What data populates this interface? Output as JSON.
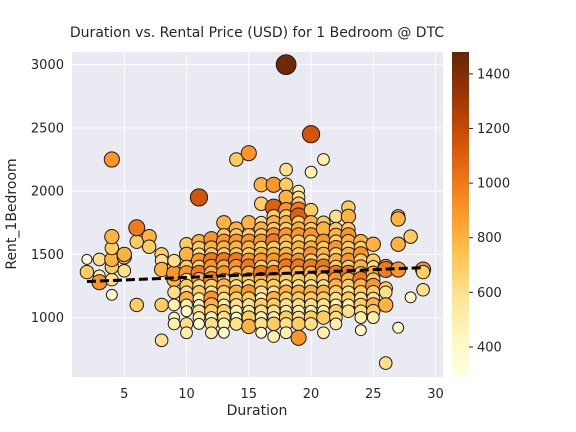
{
  "chart_data": {
    "type": "scatter",
    "title": "Duration vs. Rental Price (USD) for 1 Bedroom @ DTC",
    "xlabel": "Duration",
    "ylabel": "Rent_1Bedroom",
    "xlim": [
      0.8,
      30.6
    ],
    "ylim": [
      530,
      3100
    ],
    "xticks": [
      5,
      10,
      15,
      20,
      25,
      30
    ],
    "yticks": [
      1000,
      1500,
      2000,
      2500,
      3000
    ],
    "grid": true,
    "background": "#eaeaf2",
    "colorbar": {
      "min": 290,
      "max": 1480,
      "ticks": [
        400,
        600,
        800,
        1000,
        1200,
        1400
      ],
      "colormap": "YlOrBr"
    },
    "trendline": {
      "x": [
        2,
        29
      ],
      "y": [
        1285,
        1395
      ],
      "style": "dashed",
      "color": "#000000"
    },
    "points": [
      [
        2,
        1460
      ],
      [
        2,
        1360
      ],
      [
        3,
        1460
      ],
      [
        3,
        1330
      ],
      [
        3,
        1280
      ],
      [
        4,
        1300
      ],
      [
        4,
        1180
      ],
      [
        4,
        1400
      ],
      [
        4,
        1460
      ],
      [
        4,
        1550
      ],
      [
        4,
        1640
      ],
      [
        4,
        2250
      ],
      [
        5,
        1370
      ],
      [
        5,
        1480
      ],
      [
        5,
        1500
      ],
      [
        6,
        1600
      ],
      [
        6,
        1710
      ],
      [
        6,
        1100
      ],
      [
        7,
        1640
      ],
      [
        7,
        1560
      ],
      [
        8,
        1500
      ],
      [
        8,
        1450
      ],
      [
        8,
        1380
      ],
      [
        8,
        1100
      ],
      [
        8,
        820
      ],
      [
        9,
        1400
      ],
      [
        9,
        1300
      ],
      [
        9,
        1200
      ],
      [
        9,
        1100
      ],
      [
        9,
        1000
      ],
      [
        9,
        950
      ],
      [
        9,
        1350
      ],
      [
        9,
        1450
      ],
      [
        10,
        1580
      ],
      [
        10,
        1500
      ],
      [
        10,
        1400
      ],
      [
        10,
        1350
      ],
      [
        10,
        1300
      ],
      [
        10,
        1250
      ],
      [
        10,
        1200
      ],
      [
        10,
        1150
      ],
      [
        10,
        1100
      ],
      [
        10,
        1050
      ],
      [
        10,
        950
      ],
      [
        10,
        880
      ],
      [
        11,
        1950
      ],
      [
        11,
        1600
      ],
      [
        11,
        1550
      ],
      [
        11,
        1500
      ],
      [
        11,
        1450
      ],
      [
        11,
        1400
      ],
      [
        11,
        1350
      ],
      [
        11,
        1300
      ],
      [
        11,
        1250
      ],
      [
        11,
        1200
      ],
      [
        11,
        1150
      ],
      [
        11,
        1100
      ],
      [
        11,
        1050
      ],
      [
        11,
        1000
      ],
      [
        11,
        950
      ],
      [
        12,
        1620
      ],
      [
        12,
        1550
      ],
      [
        12,
        1500
      ],
      [
        12,
        1450
      ],
      [
        12,
        1400
      ],
      [
        12,
        1350
      ],
      [
        12,
        1300
      ],
      [
        12,
        1250
      ],
      [
        12,
        1200
      ],
      [
        12,
        1150
      ],
      [
        12,
        1100
      ],
      [
        12,
        1050
      ],
      [
        12,
        1000
      ],
      [
        12,
        950
      ],
      [
        12,
        880
      ],
      [
        13,
        1750
      ],
      [
        13,
        1650
      ],
      [
        13,
        1600
      ],
      [
        13,
        1550
      ],
      [
        13,
        1500
      ],
      [
        13,
        1450
      ],
      [
        13,
        1400
      ],
      [
        13,
        1350
      ],
      [
        13,
        1300
      ],
      [
        13,
        1250
      ],
      [
        13,
        1200
      ],
      [
        13,
        1150
      ],
      [
        13,
        1100
      ],
      [
        13,
        1050
      ],
      [
        13,
        1000
      ],
      [
        13,
        950
      ],
      [
        13,
        880
      ],
      [
        14,
        2250
      ],
      [
        14,
        1700
      ],
      [
        14,
        1650
      ],
      [
        14,
        1600
      ],
      [
        14,
        1550
      ],
      [
        14,
        1500
      ],
      [
        14,
        1450
      ],
      [
        14,
        1400
      ],
      [
        14,
        1350
      ],
      [
        14,
        1300
      ],
      [
        14,
        1250
      ],
      [
        14,
        1200
      ],
      [
        14,
        1150
      ],
      [
        14,
        1100
      ],
      [
        14,
        1050
      ],
      [
        14,
        1000
      ],
      [
        14,
        950
      ],
      [
        15,
        2300
      ],
      [
        15,
        1750
      ],
      [
        15,
        1650
      ],
      [
        15,
        1600
      ],
      [
        15,
        1550
      ],
      [
        15,
        1500
      ],
      [
        15,
        1450
      ],
      [
        15,
        1400
      ],
      [
        15,
        1350
      ],
      [
        15,
        1300
      ],
      [
        15,
        1250
      ],
      [
        15,
        1200
      ],
      [
        15,
        1150
      ],
      [
        15,
        1100
      ],
      [
        15,
        1050
      ],
      [
        15,
        1000
      ],
      [
        15,
        930
      ],
      [
        16,
        2050
      ],
      [
        16,
        1900
      ],
      [
        16,
        1750
      ],
      [
        16,
        1700
      ],
      [
        16,
        1650
      ],
      [
        16,
        1600
      ],
      [
        16,
        1550
      ],
      [
        16,
        1500
      ],
      [
        16,
        1450
      ],
      [
        16,
        1400
      ],
      [
        16,
        1350
      ],
      [
        16,
        1300
      ],
      [
        16,
        1250
      ],
      [
        16,
        1200
      ],
      [
        16,
        1150
      ],
      [
        16,
        1100
      ],
      [
        16,
        1050
      ],
      [
        16,
        1000
      ],
      [
        16,
        950
      ],
      [
        16,
        880
      ],
      [
        17,
        2050
      ],
      [
        17,
        1870
      ],
      [
        17,
        1800
      ],
      [
        17,
        1750
      ],
      [
        17,
        1700
      ],
      [
        17,
        1650
      ],
      [
        17,
        1600
      ],
      [
        17,
        1550
      ],
      [
        17,
        1500
      ],
      [
        17,
        1450
      ],
      [
        17,
        1400
      ],
      [
        17,
        1350
      ],
      [
        17,
        1300
      ],
      [
        17,
        1250
      ],
      [
        17,
        1200
      ],
      [
        17,
        1150
      ],
      [
        17,
        1100
      ],
      [
        17,
        1050
      ],
      [
        17,
        1000
      ],
      [
        17,
        950
      ],
      [
        17,
        850
      ],
      [
        18,
        3000
      ],
      [
        18,
        2170
      ],
      [
        18,
        2050
      ],
      [
        18,
        1950
      ],
      [
        18,
        1850
      ],
      [
        18,
        1800
      ],
      [
        18,
        1750
      ],
      [
        18,
        1700
      ],
      [
        18,
        1650
      ],
      [
        18,
        1600
      ],
      [
        18,
        1550
      ],
      [
        18,
        1500
      ],
      [
        18,
        1450
      ],
      [
        18,
        1400
      ],
      [
        18,
        1350
      ],
      [
        18,
        1300
      ],
      [
        18,
        1250
      ],
      [
        18,
        1200
      ],
      [
        18,
        1150
      ],
      [
        18,
        1100
      ],
      [
        18,
        1050
      ],
      [
        18,
        1000
      ],
      [
        18,
        950
      ],
      [
        18,
        880
      ],
      [
        19,
        2000
      ],
      [
        19,
        1950
      ],
      [
        19,
        1900
      ],
      [
        19,
        1850
      ],
      [
        19,
        1800
      ],
      [
        19,
        1750
      ],
      [
        19,
        1700
      ],
      [
        19,
        1650
      ],
      [
        19,
        1600
      ],
      [
        19,
        1550
      ],
      [
        19,
        1500
      ],
      [
        19,
        1450
      ],
      [
        19,
        1400
      ],
      [
        19,
        1350
      ],
      [
        19,
        1300
      ],
      [
        19,
        1250
      ],
      [
        19,
        1200
      ],
      [
        19,
        1150
      ],
      [
        19,
        1100
      ],
      [
        19,
        1050
      ],
      [
        19,
        1000
      ],
      [
        19,
        950
      ],
      [
        19,
        840
      ],
      [
        20,
        2450
      ],
      [
        20,
        2150
      ],
      [
        20,
        1850
      ],
      [
        20,
        1750
      ],
      [
        20,
        1700
      ],
      [
        20,
        1650
      ],
      [
        20,
        1600
      ],
      [
        20,
        1550
      ],
      [
        20,
        1500
      ],
      [
        20,
        1450
      ],
      [
        20,
        1400
      ],
      [
        20,
        1350
      ],
      [
        20,
        1300
      ],
      [
        20,
        1250
      ],
      [
        20,
        1200
      ],
      [
        20,
        1150
      ],
      [
        20,
        1100
      ],
      [
        20,
        1050
      ],
      [
        20,
        1000
      ],
      [
        20,
        950
      ],
      [
        21,
        2250
      ],
      [
        21,
        1750
      ],
      [
        21,
        1700
      ],
      [
        21,
        1600
      ],
      [
        21,
        1550
      ],
      [
        21,
        1500
      ],
      [
        21,
        1450
      ],
      [
        21,
        1400
      ],
      [
        21,
        1350
      ],
      [
        21,
        1300
      ],
      [
        21,
        1250
      ],
      [
        21,
        1200
      ],
      [
        21,
        1150
      ],
      [
        21,
        1100
      ],
      [
        21,
        1050
      ],
      [
        21,
        1000
      ],
      [
        21,
        880
      ],
      [
        22,
        1800
      ],
      [
        22,
        1700
      ],
      [
        22,
        1650
      ],
      [
        22,
        1600
      ],
      [
        22,
        1550
      ],
      [
        22,
        1500
      ],
      [
        22,
        1450
      ],
      [
        22,
        1400
      ],
      [
        22,
        1350
      ],
      [
        22,
        1300
      ],
      [
        22,
        1250
      ],
      [
        22,
        1200
      ],
      [
        22,
        1150
      ],
      [
        22,
        1100
      ],
      [
        22,
        1050
      ],
      [
        22,
        1000
      ],
      [
        22,
        950
      ],
      [
        23,
        1870
      ],
      [
        23,
        1800
      ],
      [
        23,
        1700
      ],
      [
        23,
        1650
      ],
      [
        23,
        1600
      ],
      [
        23,
        1550
      ],
      [
        23,
        1500
      ],
      [
        23,
        1450
      ],
      [
        23,
        1400
      ],
      [
        23,
        1350
      ],
      [
        23,
        1300
      ],
      [
        23,
        1250
      ],
      [
        23,
        1200
      ],
      [
        23,
        1150
      ],
      [
        23,
        1100
      ],
      [
        23,
        1050
      ],
      [
        24,
        1600
      ],
      [
        24,
        1550
      ],
      [
        24,
        1500
      ],
      [
        24,
        1450
      ],
      [
        24,
        1400
      ],
      [
        24,
        1350
      ],
      [
        24,
        1300
      ],
      [
        24,
        1250
      ],
      [
        24,
        1200
      ],
      [
        24,
        1150
      ],
      [
        24,
        1100
      ],
      [
        24,
        1050
      ],
      [
        24,
        1000
      ],
      [
        24,
        900
      ],
      [
        25,
        1580
      ],
      [
        25,
        1450
      ],
      [
        25,
        1400
      ],
      [
        25,
        1350
      ],
      [
        25,
        1300
      ],
      [
        25,
        1250
      ],
      [
        25,
        1200
      ],
      [
        25,
        1150
      ],
      [
        25,
        1100
      ],
      [
        25,
        1050
      ],
      [
        25,
        1000
      ],
      [
        26,
        1400
      ],
      [
        26,
        1380
      ],
      [
        26,
        1230
      ],
      [
        26,
        1200
      ],
      [
        26,
        1100
      ],
      [
        26,
        640
      ],
      [
        27,
        1800
      ],
      [
        27,
        1780
      ],
      [
        27,
        1580
      ],
      [
        27,
        1380
      ],
      [
        27,
        920
      ],
      [
        28,
        1640
      ],
      [
        28,
        1160
      ],
      [
        29,
        1380
      ],
      [
        29,
        1360
      ],
      [
        29,
        1220
      ]
    ],
    "colors": [
      300,
      700,
      600,
      500,
      900,
      600,
      400,
      700,
      800,
      700,
      800,
      900,
      600,
      800,
      800,
      700,
      1000,
      700,
      800,
      700,
      700,
      600,
      800,
      700,
      600,
      700,
      800,
      600,
      500,
      400,
      500,
      900,
      600,
      700,
      800,
      700,
      900,
      600,
      700,
      600,
      800,
      500,
      400,
      600,
      500,
      1150,
      800,
      700,
      600,
      900,
      700,
      1000,
      800,
      600,
      700,
      500,
      400,
      600,
      500,
      400,
      900,
      800,
      700,
      1000,
      900,
      800,
      1000,
      700,
      600,
      900,
      800,
      700,
      500,
      600,
      500,
      800,
      700,
      900,
      800,
      700,
      1000,
      800,
      900,
      600,
      800,
      700,
      600,
      500,
      700,
      600,
      500,
      400,
      700,
      800,
      700,
      900,
      800,
      700,
      1000,
      900,
      800,
      700,
      600,
      800,
      700,
      600,
      500,
      400,
      600,
      900,
      800,
      700,
      900,
      800,
      700,
      900,
      1000,
      800,
      700,
      600,
      900,
      700,
      600,
      500,
      700,
      800,
      800,
      700,
      600,
      800,
      700,
      900,
      700,
      800,
      900,
      700,
      1000,
      800,
      700,
      600,
      500,
      700,
      600,
      500,
      600,
      400,
      900,
      1100,
      700,
      800,
      700,
      900,
      1000,
      700,
      800,
      900,
      700,
      1000,
      800,
      700,
      600,
      800,
      700,
      600,
      500,
      700,
      500,
      1450,
      600,
      700,
      800,
      900,
      700,
      800,
      700,
      900,
      800,
      700,
      800,
      900,
      1000,
      800,
      700,
      600,
      800,
      700,
      600,
      500,
      700,
      600,
      500,
      500,
      600,
      700,
      1000,
      1100,
      700,
      800,
      900,
      700,
      800,
      700,
      900,
      1000,
      800,
      700,
      600,
      800,
      700,
      600,
      500,
      600,
      700,
      900,
      1150,
      500,
      700,
      800,
      700,
      900,
      700,
      800,
      900,
      700,
      1000,
      800,
      700,
      600,
      800,
      700,
      600,
      500,
      700,
      600,
      500,
      700,
      800,
      900,
      700,
      800,
      700,
      1000,
      900,
      700,
      600,
      800,
      700,
      600,
      500,
      700,
      500,
      600,
      700,
      800,
      700,
      900,
      700,
      800,
      700,
      1000,
      900,
      800,
      700,
      600,
      500,
      700,
      600,
      500,
      700,
      800,
      700,
      900,
      800,
      700,
      800,
      900,
      700,
      1000,
      800,
      700,
      600,
      700,
      500,
      600,
      800,
      700,
      900,
      700,
      800,
      700,
      1000,
      800,
      700,
      600,
      700,
      600,
      500,
      400,
      800,
      700,
      600,
      800,
      700,
      900,
      700,
      600,
      800,
      700,
      500,
      900,
      1000,
      700,
      600,
      800,
      600,
      700,
      800,
      800,
      900,
      400,
      700,
      400,
      900,
      700,
      600
    ]
  }
}
